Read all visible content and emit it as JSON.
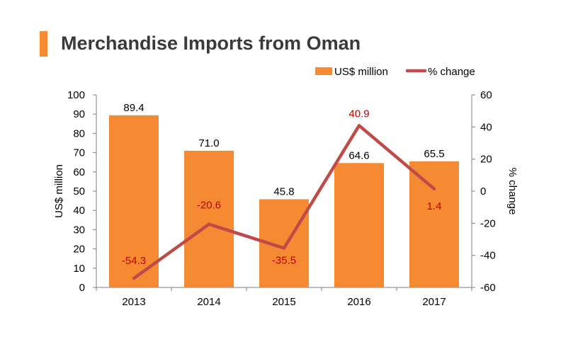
{
  "title": "Merchandise Imports from Oman",
  "colors": {
    "bar": "#f58a33",
    "line": "#be4b48",
    "accent": "#f58a33",
    "line_label": "#c00000",
    "axis_text": "#000000",
    "title": "#3a3a3a"
  },
  "chart_data": {
    "type": "bar",
    "title": "Merchandise Imports from Oman",
    "categories": [
      "2013",
      "2014",
      "2015",
      "2016",
      "2017"
    ],
    "series": [
      {
        "name": "US$ million",
        "type": "bar",
        "axis": "left",
        "values": [
          89.4,
          71.0,
          45.8,
          64.6,
          65.5
        ],
        "labels": [
          "89.4",
          "71.0",
          "45.8",
          "64.6",
          "65.5"
        ]
      },
      {
        "name": "% change",
        "type": "line",
        "axis": "right",
        "values": [
          -54.3,
          -20.6,
          -35.5,
          40.9,
          1.4
        ],
        "labels": [
          "-54.3",
          "-20.6",
          "-35.5",
          "40.9",
          "1.4"
        ]
      }
    ],
    "ylabel": "US$ million",
    "y2label": "% change",
    "ylim": [
      0,
      100
    ],
    "y2lim": [
      -60,
      60
    ],
    "yticks": [
      "0",
      "10",
      "20",
      "30",
      "40",
      "50",
      "60",
      "70",
      "80",
      "90",
      "100"
    ],
    "y2ticks": [
      "-60",
      "-40",
      "-20",
      "0",
      "20",
      "40",
      "60"
    ],
    "legend_position": "top-right",
    "grid": false
  }
}
